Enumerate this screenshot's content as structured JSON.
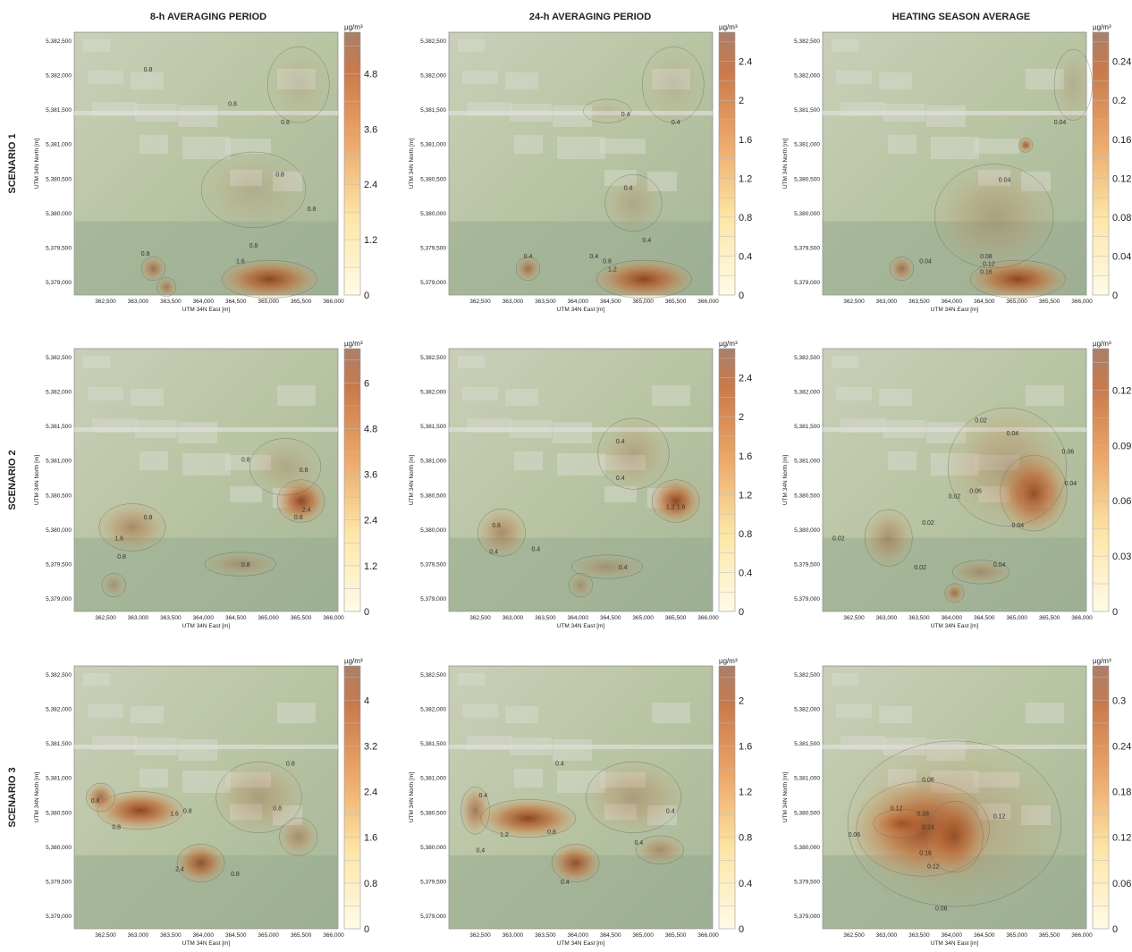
{
  "columns": [
    "8-h AVERAGING PERIOD",
    "24-h AVERAGING PERIOD",
    "HEATING SEASON AVERAGE"
  ],
  "unit": "µg/m³",
  "x_axis_label": "UTM 34N East [m]",
  "y_axis_label": "UTM 34N North [m]",
  "x_ticks": [
    "362,500",
    "363,000",
    "363,500",
    "364,000",
    "364,500",
    "365,000",
    "365,500",
    "366,000"
  ],
  "y_ticks": [
    "5,382,500",
    "5,382,000",
    "5,381,500",
    "5,381,000",
    "5,380,500",
    "5,380,000",
    "5,379,500",
    "5,379,000"
  ],
  "rows": [
    {
      "label": "SCENARIO 1",
      "panels": [
        {
          "colorbar_ticks": [
            0,
            1.2,
            2.4,
            3.6,
            4.8
          ],
          "contour_labels": [
            0.8,
            0.8,
            0.8,
            0.8,
            0.8,
            0.8,
            0.8,
            1.6
          ]
        },
        {
          "colorbar_ticks": [
            0,
            0.4,
            0.8,
            1.2,
            1.6,
            2,
            2.4
          ],
          "contour_labels": [
            0.4,
            0.4,
            0.4,
            0.4,
            0.4,
            0.4,
            0.8,
            1.2
          ]
        },
        {
          "colorbar_ticks": [
            0,
            0.04,
            0.08,
            0.12,
            0.16,
            0.2,
            0.24
          ],
          "contour_labels": [
            0.04,
            0.04,
            0.04,
            0.08,
            0.12,
            0.16
          ]
        }
      ]
    },
    {
      "label": "SCENARIO 2",
      "panels": [
        {
          "colorbar_ticks": [
            0,
            1.2,
            2.4,
            3.6,
            4.8,
            6
          ],
          "contour_labels": [
            0.8,
            0.8,
            0.8,
            0.8,
            1.6,
            0.8,
            2.4,
            0.8
          ]
        },
        {
          "colorbar_ticks": [
            0,
            0.4,
            0.8,
            1.2,
            1.6,
            2,
            2.4
          ],
          "contour_labels": [
            0.4,
            0.4,
            0.4,
            0.4,
            0.8,
            0.4,
            1.2,
            1.6
          ]
        },
        {
          "colorbar_ticks": [
            0,
            0.03,
            0.06,
            0.09,
            0.12
          ],
          "contour_labels": [
            0.02,
            0.04,
            0.06,
            0.06,
            0.04,
            0.02,
            0.02,
            0.04,
            0.02,
            0.02,
            0.04
          ]
        }
      ]
    },
    {
      "label": "SCENARIO 3",
      "panels": [
        {
          "colorbar_ticks": [
            0,
            0.8,
            1.6,
            2.4,
            3.2,
            4
          ],
          "contour_labels": [
            0.8,
            0.8,
            0.8,
            0.8,
            1.6,
            0.8,
            2.4,
            0.8
          ]
        },
        {
          "colorbar_ticks": [
            0,
            0.4,
            0.8,
            1.2,
            1.6,
            2
          ],
          "contour_labels": [
            0.4,
            0.4,
            0.4,
            0.4,
            0.8,
            0.4,
            1.2,
            0.4
          ]
        },
        {
          "colorbar_ticks": [
            0,
            0.06,
            0.12,
            0.18,
            0.24,
            0.3
          ],
          "contour_labels": [
            0.06,
            0.06,
            0.12,
            0.18,
            0.24,
            0.12,
            0.06,
            0.12,
            0.18
          ]
        }
      ]
    }
  ]
}
